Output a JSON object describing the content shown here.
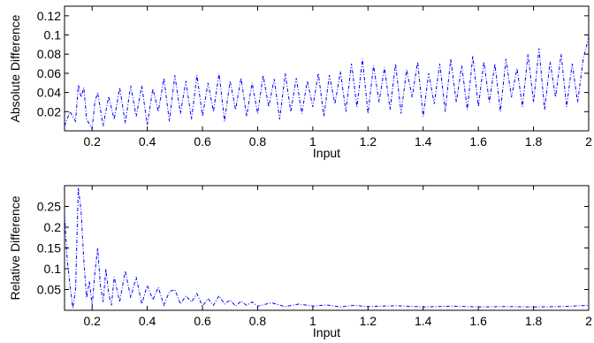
{
  "figure_bg": "#ffffff",
  "chart_data": [
    {
      "type": "line",
      "title": "",
      "xlabel": "Input",
      "ylabel": "Absolute Difference",
      "xlim": [
        0.1,
        2.0
      ],
      "ylim": [
        0,
        0.13
      ],
      "xticks": [
        0.2,
        0.4,
        0.6,
        0.8,
        1,
        1.2,
        1.4,
        1.6,
        1.8,
        2
      ],
      "xtick_labels": [
        "0.2",
        "0.4",
        "0.6",
        "0.8",
        "1",
        "1.2",
        "1.4",
        "1.6",
        "1.8",
        "2"
      ],
      "yticks": [
        0.02,
        0.04,
        0.06,
        0.08,
        0.1,
        0.12
      ],
      "ytick_labels": [
        "0.02",
        "0.04",
        "0.06",
        "0.08",
        "0.1",
        "0.12"
      ],
      "grid": false,
      "series": [
        {
          "color": "#0000ff",
          "line_style": "dash-dot",
          "x": [
            0.1,
            0.12,
            0.14,
            0.15,
            0.16,
            0.17,
            0.18,
            0.2,
            0.21,
            0.22,
            0.24,
            0.26,
            0.28,
            0.3,
            0.32,
            0.34,
            0.36,
            0.38,
            0.4,
            0.42,
            0.44,
            0.46,
            0.48,
            0.5,
            0.52,
            0.54,
            0.56,
            0.58,
            0.6,
            0.62,
            0.64,
            0.66,
            0.68,
            0.7,
            0.72,
            0.74,
            0.76,
            0.78,
            0.8,
            0.82,
            0.84,
            0.86,
            0.88,
            0.9,
            0.92,
            0.94,
            0.96,
            0.98,
            1.0,
            1.02,
            1.04,
            1.06,
            1.08,
            1.1,
            1.12,
            1.14,
            1.16,
            1.18,
            1.2,
            1.22,
            1.24,
            1.26,
            1.28,
            1.3,
            1.32,
            1.34,
            1.36,
            1.38,
            1.4,
            1.42,
            1.44,
            1.46,
            1.48,
            1.5,
            1.52,
            1.54,
            1.56,
            1.58,
            1.6,
            1.62,
            1.64,
            1.66,
            1.68,
            1.7,
            1.72,
            1.74,
            1.76,
            1.78,
            1.8,
            1.82,
            1.84,
            1.86,
            1.88,
            1.9,
            1.92,
            1.94,
            1.96,
            1.98,
            2.0
          ],
          "y": [
            0.005,
            0.02,
            0.01,
            0.048,
            0.035,
            0.045,
            0.012,
            0.002,
            0.03,
            0.04,
            0.005,
            0.036,
            0.012,
            0.045,
            0.008,
            0.047,
            0.015,
            0.047,
            0.006,
            0.044,
            0.02,
            0.055,
            0.01,
            0.058,
            0.018,
            0.052,
            0.012,
            0.058,
            0.015,
            0.05,
            0.02,
            0.06,
            0.01,
            0.052,
            0.022,
            0.055,
            0.015,
            0.05,
            0.018,
            0.058,
            0.025,
            0.054,
            0.012,
            0.06,
            0.02,
            0.055,
            0.018,
            0.052,
            0.025,
            0.06,
            0.015,
            0.058,
            0.028,
            0.062,
            0.02,
            0.07,
            0.025,
            0.075,
            0.018,
            0.068,
            0.03,
            0.066,
            0.022,
            0.07,
            0.018,
            0.064,
            0.035,
            0.072,
            0.015,
            0.06,
            0.028,
            0.07,
            0.02,
            0.075,
            0.03,
            0.068,
            0.022,
            0.078,
            0.025,
            0.072,
            0.03,
            0.07,
            0.02,
            0.075,
            0.035,
            0.065,
            0.025,
            0.08,
            0.03,
            0.086,
            0.022,
            0.072,
            0.035,
            0.08,
            0.025,
            0.07,
            0.03,
            0.075,
            0.098
          ]
        }
      ]
    },
    {
      "type": "line",
      "title": "",
      "xlabel": "Input",
      "ylabel": "Relative Difference",
      "xlim": [
        0.1,
        2.0
      ],
      "ylim": [
        0,
        0.3
      ],
      "xticks": [
        0.2,
        0.4,
        0.6,
        0.8,
        1,
        1.2,
        1.4,
        1.6,
        1.8,
        2
      ],
      "xtick_labels": [
        "0.2",
        "0.4",
        "0.6",
        "0.8",
        "1",
        "1.2",
        "1.4",
        "1.6",
        "1.8",
        "2"
      ],
      "yticks": [
        0.05,
        0.1,
        0.15,
        0.2,
        0.25
      ],
      "ytick_labels": [
        "0.05",
        "0.1",
        "0.15",
        "0.2",
        "0.25"
      ],
      "grid": false,
      "series": [
        {
          "color": "#0000ff",
          "line_style": "dash-dot",
          "x": [
            0.1,
            0.11,
            0.12,
            0.13,
            0.14,
            0.15,
            0.16,
            0.17,
            0.18,
            0.19,
            0.2,
            0.21,
            0.22,
            0.23,
            0.24,
            0.25,
            0.26,
            0.27,
            0.28,
            0.3,
            0.32,
            0.34,
            0.36,
            0.38,
            0.4,
            0.42,
            0.44,
            0.46,
            0.48,
            0.5,
            0.52,
            0.54,
            0.56,
            0.58,
            0.6,
            0.62,
            0.64,
            0.66,
            0.68,
            0.7,
            0.72,
            0.74,
            0.76,
            0.78,
            0.8,
            0.85,
            0.9,
            0.95,
            1.0,
            1.05,
            1.1,
            1.15,
            1.2,
            1.3,
            1.4,
            1.5,
            1.6,
            1.7,
            1.8,
            1.9,
            2.0
          ],
          "y": [
            0.23,
            0.12,
            0.06,
            0.005,
            0.05,
            0.295,
            0.24,
            0.12,
            0.03,
            0.07,
            0.01,
            0.09,
            0.15,
            0.06,
            0.02,
            0.1,
            0.04,
            0.012,
            0.08,
            0.02,
            0.095,
            0.03,
            0.08,
            0.015,
            0.06,
            0.025,
            0.055,
            0.012,
            0.045,
            0.05,
            0.015,
            0.035,
            0.02,
            0.04,
            0.01,
            0.028,
            0.012,
            0.035,
            0.015,
            0.025,
            0.01,
            0.022,
            0.012,
            0.02,
            0.01,
            0.018,
            0.009,
            0.015,
            0.01,
            0.013,
            0.008,
            0.012,
            0.009,
            0.011,
            0.008,
            0.01,
            0.008,
            0.009,
            0.008,
            0.009,
            0.012
          ]
        }
      ]
    }
  ]
}
